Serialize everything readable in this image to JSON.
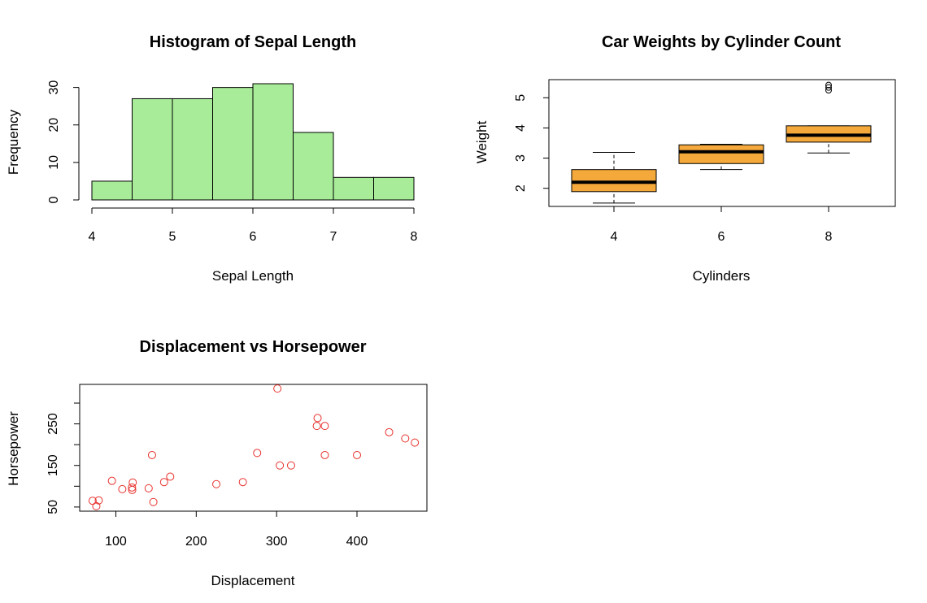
{
  "chart_data": [
    {
      "type": "bar",
      "subtype": "histogram",
      "title": "Histogram of Sepal Length",
      "xlabel": "Sepal Length",
      "ylabel": "Frequency",
      "bins": [
        [
          4.0,
          4.5
        ],
        [
          4.5,
          5.0
        ],
        [
          5.0,
          5.5
        ],
        [
          5.5,
          6.0
        ],
        [
          6.0,
          6.5
        ],
        [
          6.5,
          7.0
        ],
        [
          7.0,
          7.5
        ],
        [
          7.5,
          8.0
        ]
      ],
      "values": [
        5,
        27,
        27,
        30,
        31,
        18,
        6,
        6
      ],
      "xlim": [
        4,
        8
      ],
      "ylim": [
        0,
        31
      ],
      "xticks": [
        4,
        5,
        6,
        7,
        8
      ],
      "yticks": [
        0,
        10,
        20,
        30
      ],
      "bar_color": "#a8eb98",
      "grid": false
    },
    {
      "type": "box",
      "title": "Car Weights by Cylinder Count",
      "xlabel": "Cylinders",
      "ylabel": "Weight",
      "categories": [
        "4",
        "6",
        "8"
      ],
      "boxes": [
        {
          "category": "4",
          "whisker_low": 1.51,
          "q1": 1.89,
          "median": 2.2,
          "q3": 2.62,
          "whisker_high": 3.19,
          "outliers": []
        },
        {
          "category": "6",
          "whisker_low": 2.62,
          "q1": 2.82,
          "median": 3.21,
          "q3": 3.44,
          "whisker_high": 3.46,
          "outliers": []
        },
        {
          "category": "8",
          "whisker_low": 3.17,
          "q1": 3.53,
          "median": 3.76,
          "q3": 4.07,
          "whisker_high": 4.07,
          "outliers": [
            5.25,
            5.34,
            5.42
          ]
        }
      ],
      "ylim": [
        1.4,
        5.6
      ],
      "yticks": [
        2,
        3,
        4,
        5
      ],
      "box_color": "#f5a93a",
      "grid": false
    },
    {
      "type": "scatter",
      "title": "Displacement vs Horsepower",
      "xlabel": "Displacement",
      "ylabel": "Horsepower",
      "points": [
        [
          71.1,
          65
        ],
        [
          75.7,
          52
        ],
        [
          78.7,
          66
        ],
        [
          95.1,
          113
        ],
        [
          108,
          93
        ],
        [
          120.1,
          97
        ],
        [
          120.3,
          91
        ],
        [
          121,
          109
        ],
        [
          140.8,
          95
        ],
        [
          145,
          175
        ],
        [
          146.7,
          62
        ],
        [
          160,
          110
        ],
        [
          167.6,
          123
        ],
        [
          225,
          105
        ],
        [
          258,
          110
        ],
        [
          275.8,
          180
        ],
        [
          301,
          335
        ],
        [
          304,
          150
        ],
        [
          318,
          150
        ],
        [
          350,
          245
        ],
        [
          351,
          264
        ],
        [
          360,
          245
        ],
        [
          360,
          175
        ],
        [
          400,
          175
        ],
        [
          440,
          230
        ],
        [
          460,
          215
        ],
        [
          472,
          205
        ]
      ],
      "xlim": [
        55,
        487
      ],
      "ylim": [
        40,
        345
      ],
      "xticks": [
        100,
        200,
        300,
        400
      ],
      "yticks": [
        50,
        150,
        250
      ],
      "yticks_unlabeled": [
        100,
        200,
        300
      ],
      "point_color": "#e8322e",
      "grid": false
    }
  ]
}
